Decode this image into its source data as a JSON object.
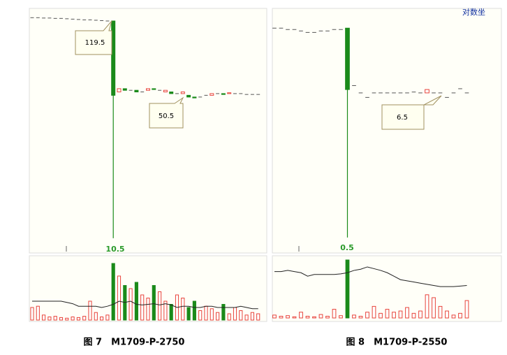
{
  "chart_data": [
    {
      "type": "candlestick",
      "log_scale": true,
      "ylim": [
        8.9,
        137.6
      ],
      "vlim": [
        0,
        100
      ],
      "up_color": "#e8433a",
      "down_color": "#1a8a1a",
      "flat_color": "#555555",
      "ma_color": "#222222",
      "caption": "图 7　M1709-P-2750",
      "open": [
        124,
        124,
        123.5,
        123.5,
        123,
        123,
        122.5,
        122,
        121.5,
        121,
        121,
        120.5,
        120,
        119.5,
        119.5,
        54,
        56,
        55,
        55,
        54,
        55,
        56,
        55,
        54,
        54,
        53,
        53,
        52,
        51,
        51,
        52,
        52,
        53,
        53,
        53,
        53,
        53,
        52.5,
        52.5,
        52.5
      ],
      "close": [
        124,
        124,
        123.5,
        123.5,
        123,
        123,
        122.5,
        122,
        121.5,
        121,
        121,
        120.5,
        120,
        119.5,
        52,
        56,
        55,
        55,
        54,
        54,
        56,
        55.5,
        55,
        55,
        53,
        53,
        54,
        51,
        50.5,
        51,
        52,
        53,
        53,
        52.5,
        53.5,
        53,
        53,
        52.5,
        52.5,
        52.5
      ],
      "high": [
        124,
        124,
        123.5,
        123.5,
        123,
        123,
        122.5,
        122,
        121.5,
        121,
        121,
        120.5,
        120,
        119.5,
        119.5,
        56,
        56,
        55,
        55,
        54,
        56,
        56,
        55,
        55,
        54,
        53,
        54,
        52,
        51,
        51,
        52,
        53,
        53,
        53,
        53.5,
        53,
        53,
        52.5,
        52.5,
        52.5
      ],
      "low": [
        124,
        124,
        123.5,
        123.5,
        123,
        123,
        122.5,
        122,
        121.5,
        121,
        121,
        120.5,
        120,
        119.5,
        10.5,
        54,
        55,
        55,
        54,
        54,
        55,
        55.5,
        55,
        54,
        53,
        53,
        53,
        51,
        50.5,
        51,
        52,
        52,
        53,
        52.5,
        53,
        53,
        53,
        52.5,
        52.5,
        52.5
      ],
      "volume": [
        20,
        22,
        8,
        5,
        6,
        4,
        3,
        5,
        4,
        6,
        30,
        12,
        5,
        8,
        90,
        70,
        55,
        50,
        60,
        40,
        35,
        55,
        45,
        30,
        25,
        40,
        35,
        20,
        30,
        15,
        22,
        18,
        12,
        25,
        10,
        20,
        15,
        8,
        12,
        10
      ],
      "volume_ma": [
        30,
        30,
        30,
        30,
        30,
        30,
        28,
        26,
        22,
        22,
        22,
        22,
        20,
        22,
        25,
        30,
        28,
        30,
        25,
        24,
        25,
        26,
        24,
        26,
        24,
        20,
        22,
        22,
        20,
        20,
        22,
        22,
        20,
        20,
        20,
        20,
        22,
        20,
        18,
        18
      ]
    },
    {
      "type": "candlestick",
      "log_scale": true,
      "ylim": [
        0.38,
        29.1
      ],
      "vlim": [
        0,
        100
      ],
      "up_color": "#e8433a",
      "down_color": "#1a8a1a",
      "flat_color": "#555555",
      "ma_color": "#222222",
      "scale_label": "对数坐",
      "caption": "图 8　M1709-P-2550",
      "open": [
        20.5,
        20.5,
        20,
        20,
        19.5,
        19,
        19,
        19.5,
        19.5,
        20,
        20,
        20.5,
        7.4,
        6.5,
        6.0,
        6.5,
        6.5,
        6.5,
        6.5,
        6.5,
        6.5,
        6.6,
        6.5,
        6.5,
        6.5,
        6.5,
        6.0,
        6.5,
        7.0,
        6.5
      ],
      "close": [
        20.5,
        20.5,
        20,
        20,
        19.5,
        19,
        19,
        19.5,
        19.5,
        20,
        20,
        6.9,
        7.4,
        6.5,
        6.0,
        6.5,
        6.5,
        6.5,
        6.5,
        6.5,
        6.5,
        6.6,
        6.5,
        6.9,
        6.5,
        6.5,
        6.0,
        6.5,
        7.0,
        6.5
      ],
      "high": [
        20.5,
        20.5,
        20,
        20,
        19.5,
        19,
        19,
        19.5,
        19.5,
        20,
        20,
        20.5,
        7.4,
        6.5,
        6.0,
        6.5,
        6.5,
        6.5,
        6.5,
        6.5,
        6.5,
        6.6,
        6.5,
        6.9,
        6.5,
        6.5,
        6.0,
        6.5,
        7.0,
        6.5
      ],
      "low": [
        20.5,
        20.5,
        20,
        20,
        19.5,
        19,
        19,
        19.5,
        19.5,
        20,
        20,
        0.5,
        7.4,
        6.5,
        6.0,
        6.5,
        6.5,
        6.5,
        6.5,
        6.5,
        6.5,
        6.6,
        6.5,
        6.5,
        6.5,
        6.5,
        6.0,
        6.5,
        7.0,
        6.5
      ],
      "volume": [
        5,
        3,
        4,
        2,
        10,
        3,
        2,
        6,
        3,
        15,
        4,
        100,
        5,
        3,
        10,
        20,
        8,
        15,
        10,
        12,
        18,
        8,
        12,
        40,
        35,
        20,
        12,
        5,
        8,
        30
      ],
      "volume_ma": [
        80,
        80,
        82,
        80,
        78,
        72,
        75,
        75,
        75,
        75,
        76,
        78,
        82,
        84,
        88,
        85,
        82,
        78,
        72,
        66,
        64,
        62,
        60,
        58,
        56,
        54,
        54,
        54,
        55,
        56
      ]
    }
  ]
}
